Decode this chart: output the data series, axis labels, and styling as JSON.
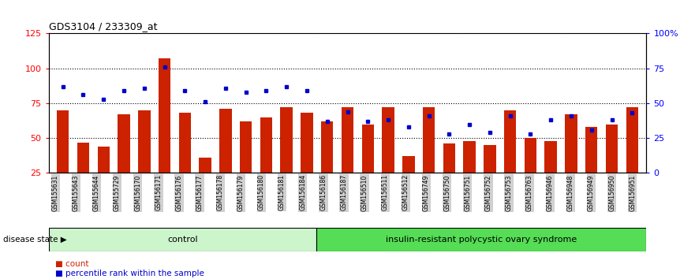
{
  "title": "GDS3104 / 233309_at",
  "samples": [
    "GSM155631",
    "GSM155643",
    "GSM155644",
    "GSM155729",
    "GSM156170",
    "GSM156171",
    "GSM156176",
    "GSM156177",
    "GSM156178",
    "GSM156179",
    "GSM156180",
    "GSM156181",
    "GSM156184",
    "GSM156186",
    "GSM156187",
    "GSM156510",
    "GSM156511",
    "GSM156512",
    "GSM156749",
    "GSM156750",
    "GSM156751",
    "GSM156752",
    "GSM156753",
    "GSM156763",
    "GSM156946",
    "GSM156948",
    "GSM156949",
    "GSM156950",
    "GSM156951"
  ],
  "counts": [
    70,
    47,
    44,
    67,
    70,
    107,
    68,
    36,
    71,
    62,
    65,
    72,
    68,
    62,
    72,
    60,
    72,
    37,
    72,
    46,
    48,
    45,
    70,
    50,
    48,
    67,
    58,
    60,
    72
  ],
  "percentiles": [
    62,
    56,
    53,
    59,
    61,
    76,
    59,
    51,
    61,
    58,
    59,
    62,
    59,
    37,
    44,
    37,
    38,
    33,
    41,
    28,
    35,
    29,
    41,
    28,
    38,
    41,
    31,
    38,
    43
  ],
  "control_count": 13,
  "group1_label": "control",
  "group2_label": "insulin-resistant polycystic ovary syndrome",
  "bar_color": "#cc2200",
  "dot_color": "#0000cc",
  "left_ylim": [
    25,
    125
  ],
  "left_yticks": [
    25,
    50,
    75,
    100,
    125
  ],
  "right_ylim": [
    0,
    100
  ],
  "right_yticks": [
    0,
    25,
    50,
    75,
    100
  ],
  "right_yticklabels": [
    "0",
    "25",
    "50",
    "75",
    "100%"
  ],
  "plot_bg_color": "#ffffff",
  "tick_bg_color": "#d0d0d0",
  "group1_color": "#ccf5cc",
  "group2_color": "#55dd55",
  "disease_state_label": "disease state",
  "legend_count_label": "count",
  "legend_percentile_label": "percentile rank within the sample"
}
